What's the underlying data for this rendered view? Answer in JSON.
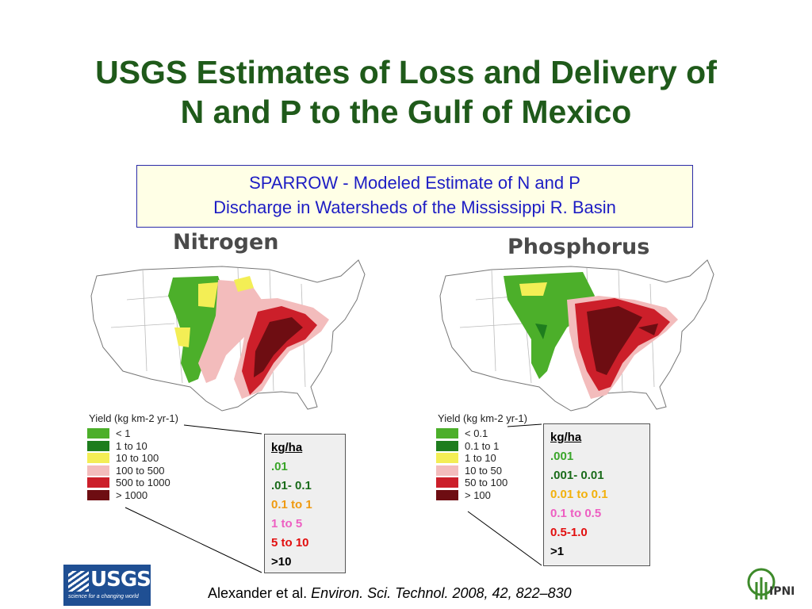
{
  "slide": {
    "title_line1": "USGS Estimates of Loss and Delivery of",
    "title_line2": "N and P to the Gulf of Mexico",
    "subtitle_line1": "SPARROW - Modeled Estimate of  N  and P",
    "subtitle_line2": "Discharge in Watersheds of the Mississippi R. Basin"
  },
  "nitrogen": {
    "label": "Nitrogen",
    "legend_title": "Yield (kg km-2 yr-1)",
    "legend": [
      {
        "text": "< 1",
        "color": "#4caf2a"
      },
      {
        "text": "1 to 10",
        "color": "#1e7d1e"
      },
      {
        "text": "10 to 100",
        "color": "#f3ee55"
      },
      {
        "text": "100 to 500",
        "color": "#f3bcbc"
      },
      {
        "text": "500 to 1000",
        "color": "#cc1f2a"
      },
      {
        "text": "> 1000",
        "color": "#6e0d12"
      }
    ],
    "kg_header": "kg/ha",
    "kg": [
      {
        "text": ".01",
        "color": "#3aa52a"
      },
      {
        "text": ".01- 0.1",
        "color": "#1a6b1a"
      },
      {
        "text": "0.1 to 1",
        "color": "#ef9a12"
      },
      {
        "text": "1 to 5",
        "color": "#ee5fc2"
      },
      {
        "text": "5 to 10",
        "color": "#e20f0f"
      },
      {
        "text": ">10",
        "color": "#000000"
      }
    ]
  },
  "phosphorus": {
    "label": "Phosphorus",
    "legend_title": "Yield (kg km-2 yr-1)",
    "legend": [
      {
        "text": "< 0.1",
        "color": "#4caf2a"
      },
      {
        "text": "0.1 to 1",
        "color": "#1e7d1e"
      },
      {
        "text": "1 to 10",
        "color": "#f3ee55"
      },
      {
        "text": "10 to 50",
        "color": "#f3bcbc"
      },
      {
        "text": "50 to 100",
        "color": "#cc1f2a"
      },
      {
        "text": "> 100",
        "color": "#6e0d12"
      }
    ],
    "kg_header": "kg/ha",
    "kg": [
      {
        "text": ".001",
        "color": "#3aa52a"
      },
      {
        "text": ".001- 0.01",
        "color": "#1a6b1a"
      },
      {
        "text": "0.01 to 0.1",
        "color": "#f2b10c"
      },
      {
        "text": "0.1 to 0.5",
        "color": "#ee5fc2"
      },
      {
        "text": "0.5-1.0",
        "color": "#e20f0f"
      },
      {
        "text": ">1",
        "color": "#000000"
      }
    ]
  },
  "citation": {
    "authors": "Alexander et al. ",
    "journal": "Environ. Sci. Technol. 2008, 42, 822–830"
  },
  "logos": {
    "usgs_word": "USGS",
    "usgs_tagline": "science for a changing world",
    "ipni_word": "IPNI"
  }
}
